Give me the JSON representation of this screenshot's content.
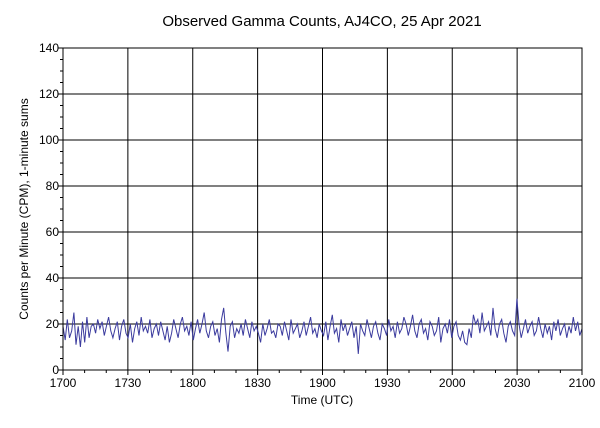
{
  "chart_data": {
    "type": "line",
    "title": "Observed Gamma Counts, AJ4CO, 25 Apr 2021",
    "xlabel": "Time (UTC)",
    "ylabel": "Counts per Minute (CPM), 1-minute sums",
    "xlim": [
      0,
      240
    ],
    "ylim": [
      0,
      140
    ],
    "x_ticks": [
      {
        "x": 0,
        "label": "1700"
      },
      {
        "x": 30,
        "label": "1730"
      },
      {
        "x": 60,
        "label": "1800"
      },
      {
        "x": 90,
        "label": "1830"
      },
      {
        "x": 120,
        "label": "1900"
      },
      {
        "x": 150,
        "label": "1930"
      },
      {
        "x": 180,
        "label": "2000"
      },
      {
        "x": 210,
        "label": "2030"
      },
      {
        "x": 240,
        "label": "2100"
      }
    ],
    "y_ticks": [
      0,
      20,
      40,
      60,
      80,
      100,
      120,
      140
    ],
    "grid": true,
    "legend": "none",
    "series": [
      {
        "color": "#3b3b9e",
        "values": [
          19,
          13,
          22,
          14,
          17,
          25,
          11,
          19,
          10,
          21,
          12,
          23,
          14,
          19,
          20,
          16,
          22,
          18,
          21,
          15,
          19,
          23,
          17,
          14,
          18,
          21,
          13,
          19,
          22,
          16,
          14,
          20,
          12,
          18,
          21,
          15,
          23,
          17,
          19,
          16,
          22,
          14,
          18,
          20,
          15,
          21,
          17,
          13,
          19,
          12,
          16,
          22,
          18,
          14,
          20,
          23,
          17,
          19,
          15,
          21,
          13,
          18,
          22,
          16,
          20,
          25,
          17,
          14,
          19,
          21,
          15,
          18,
          12,
          22,
          27,
          16,
          8,
          19,
          21,
          14,
          18,
          16,
          20,
          15,
          22,
          18,
          14,
          21,
          17,
          19,
          16,
          12,
          20,
          15,
          18,
          22,
          16,
          17,
          14,
          20,
          19,
          15,
          21,
          17,
          13,
          22,
          16,
          18,
          20,
          14,
          17,
          21,
          15,
          19,
          23,
          16,
          18,
          14,
          20,
          17,
          15,
          21,
          13,
          19,
          24,
          16,
          18,
          12,
          22,
          17,
          20,
          15,
          18,
          21,
          14,
          19,
          7,
          20,
          17,
          15,
          22,
          18,
          14,
          19,
          21,
          16,
          13,
          20,
          18,
          15,
          22,
          17,
          19,
          14,
          21,
          16,
          18,
          23,
          20,
          15,
          19,
          24,
          17,
          14,
          20,
          22,
          16,
          18,
          13,
          21,
          19,
          15,
          17,
          23,
          12,
          18,
          20,
          16,
          22,
          14,
          19,
          21,
          15,
          13,
          17,
          12,
          11,
          18,
          14,
          24,
          20,
          22,
          16,
          25,
          17,
          19,
          21,
          15,
          27,
          18,
          14,
          20,
          22,
          16,
          12,
          19,
          21,
          17,
          15,
          31,
          20,
          14,
          18,
          22,
          16,
          19,
          21,
          15,
          17,
          23,
          18,
          14,
          20,
          16,
          19,
          13,
          21,
          17,
          22,
          15,
          18,
          20,
          14,
          19,
          16,
          23,
          17,
          21,
          15,
          18
        ]
      }
    ]
  }
}
